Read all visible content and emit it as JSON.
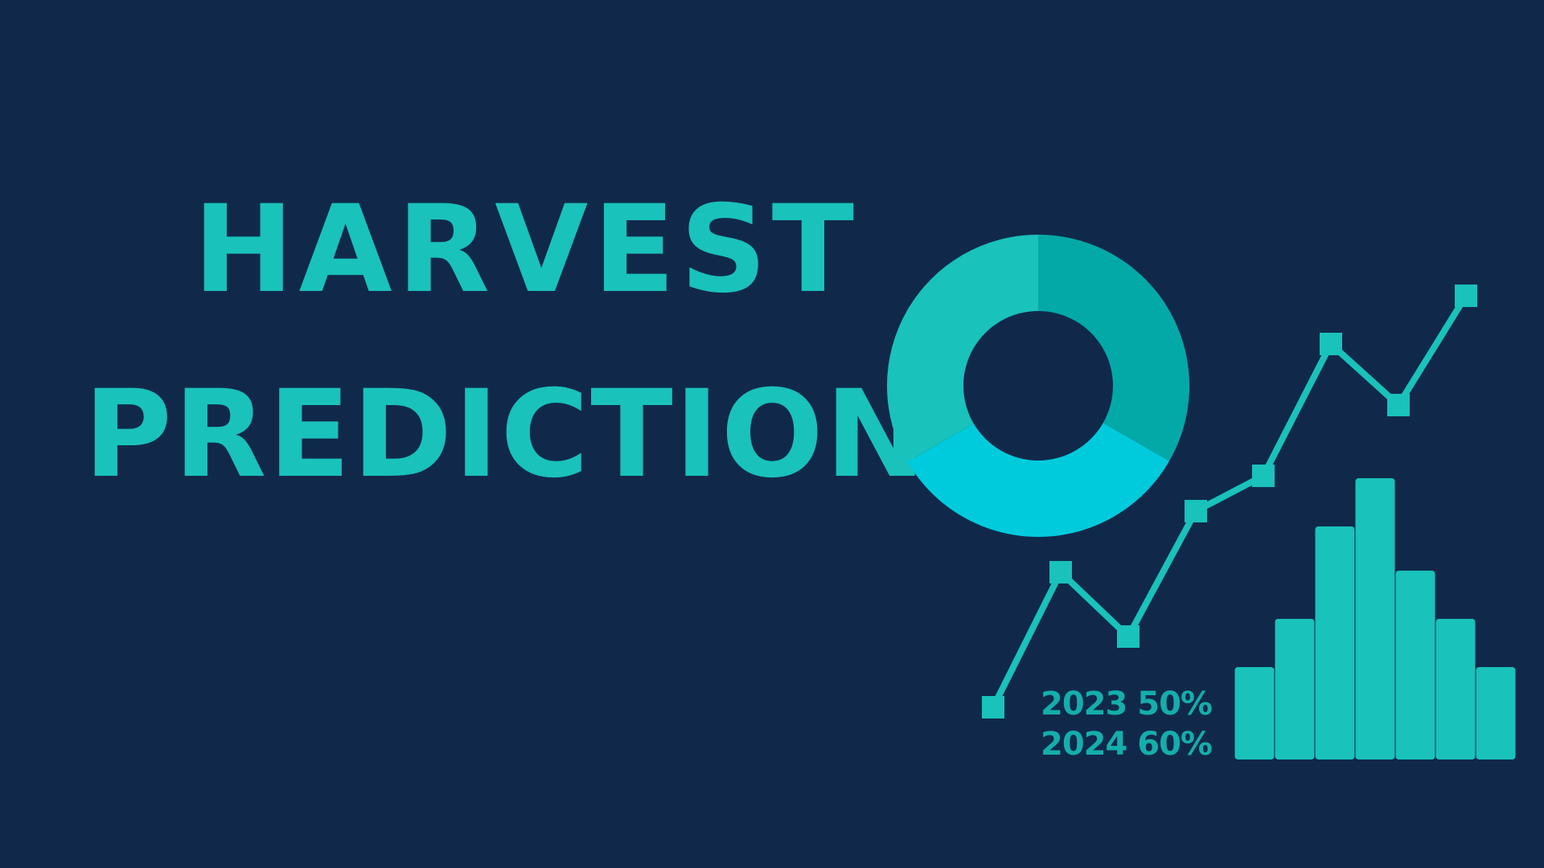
{
  "title": {
    "line1": "HARVEST",
    "line2": "PREDICTION"
  },
  "stats": [
    {
      "label": "2023 50%"
    },
    {
      "label": "2024 60%"
    }
  ],
  "colors": {
    "background": "#10294a",
    "primary": "#19c2bb",
    "donut_dark": "#02a9a7",
    "donut_light": "#00cbdc",
    "stat_text": "#14aeab"
  },
  "chart_data": [
    {
      "type": "pie",
      "values": [
        33.3,
        33.3,
        33.4
      ]
    },
    {
      "type": "line",
      "values": [
        0,
        4.2,
        2.2,
        6.1,
        7.2,
        11.3,
        9.4,
        12.8
      ]
    },
    {
      "type": "bar",
      "values": [
        2.3,
        3.5,
        5.8,
        7.0,
        4.7,
        3.5,
        2.3
      ]
    }
  ]
}
